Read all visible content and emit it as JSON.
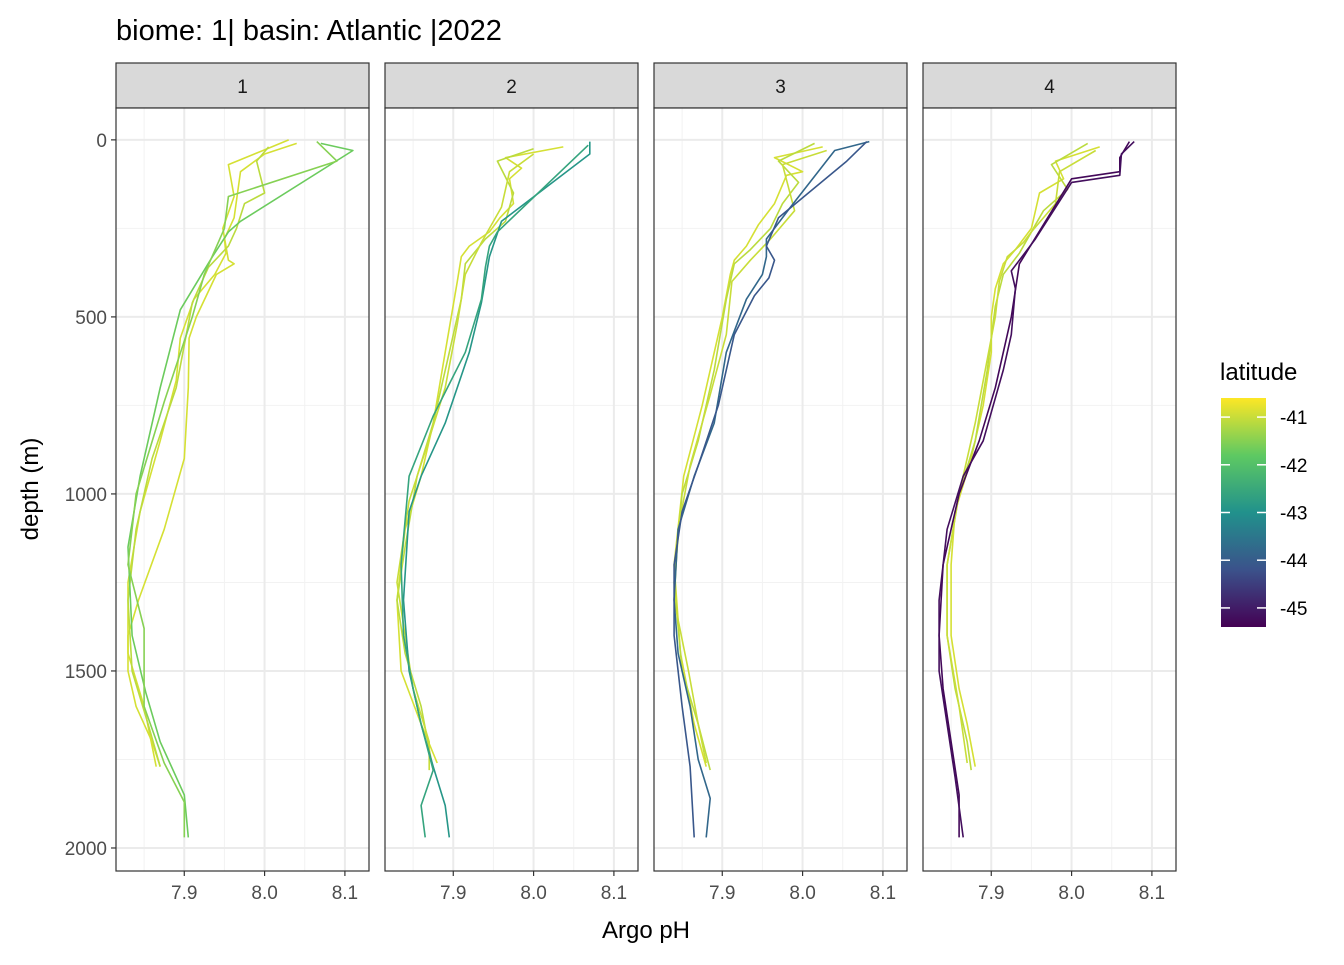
{
  "chart_data": {
    "type": "line",
    "title": "biome: 1| basin: Atlantic |2022",
    "xlabel": "Argo pH",
    "ylabel": "depth (m)",
    "xlim": [
      7.815,
      8.13
    ],
    "ylim": [
      2065,
      -90
    ],
    "x_ticks": [
      7.9,
      8.0,
      8.1
    ],
    "y_ticks": [
      0,
      500,
      1000,
      1500,
      2000
    ],
    "x_tick_labels": [
      "7.9",
      "8.0",
      "8.1"
    ],
    "y_tick_labels": [
      "0",
      "500",
      "1000",
      "1500",
      "2000"
    ],
    "grid": true,
    "legend": {
      "title": "latitude",
      "position": "right",
      "type": "colorbar",
      "range": [
        -45.4,
        -40.6
      ],
      "breaks": [
        -41,
        -42,
        -43,
        -44,
        -45
      ],
      "break_labels": [
        "-41",
        "-42",
        "-43",
        "-44",
        "-45"
      ],
      "palette": [
        "#440154",
        "#3b528b",
        "#21918c",
        "#5ec962",
        "#fde725"
      ]
    },
    "panels": [
      {
        "label": "1",
        "series": [
          {
            "latitude": -40.9,
            "x": [
              8.03,
              7.998,
              7.955,
              7.962,
              7.948,
              7.955,
              7.962,
              7.94,
              7.915,
              7.906,
              7.905,
              7.9,
              7.875,
              7.843,
              7.83,
              7.83,
              7.84,
              7.86,
              7.87
            ],
            "y": [
              0,
              30,
              70,
              160,
              250,
              340,
              350,
              380,
              500,
              560,
              700,
              900,
              1100,
              1300,
              1400,
              1500,
              1600,
              1700,
              1770
            ]
          },
          {
            "latitude": -40.9,
            "x": [
              8.04,
              8.0,
              7.97,
              7.962,
              7.95,
              7.952,
              7.938,
              7.912,
              7.895,
              7.89,
              7.87,
              7.845,
              7.83,
              7.83,
              7.85,
              7.865
            ],
            "y": [
              10,
              40,
              90,
              220,
              280,
              320,
              380,
              450,
              560,
              680,
              850,
              1050,
              1250,
              1450,
              1600,
              1770
            ]
          },
          {
            "latitude": -41.1,
            "x": [
              8.005,
              7.99,
              8.0,
              7.975,
              7.965,
              7.955,
              7.93,
              7.91,
              7.905,
              7.89,
              7.86,
              7.84,
              7.83,
              7.835,
              7.855,
              7.87
            ],
            "y": [
              20,
              60,
              150,
              180,
              250,
              300,
              360,
              460,
              520,
              700,
              900,
              1100,
              1300,
              1500,
              1650,
              1770
            ]
          },
          {
            "latitude": -41.7,
            "x": [
              8.07,
              8.11,
              7.97,
              7.955,
              7.935,
              7.895,
              7.87,
              7.845,
              7.83,
              7.835,
              7.852,
              7.87,
              7.9,
              7.905
            ],
            "y": [
              10,
              30,
              230,
              260,
              330,
              480,
              700,
              950,
              1150,
              1400,
              1560,
              1700,
              1850,
              1970
            ]
          },
          {
            "latitude": -41.5,
            "x": [
              8.065,
              8.09,
              7.955,
              7.95,
              7.925,
              7.91,
              7.875,
              7.84,
              7.83,
              7.85,
              7.85,
              7.875,
              7.9,
              7.9
            ],
            "y": [
              5,
              60,
              160,
              250,
              380,
              500,
              740,
              1000,
              1200,
              1380,
              1600,
              1760,
              1870,
              1970
            ]
          }
        ]
      },
      {
        "label": "2",
        "series": [
          {
            "latitude": -40.9,
            "x": [
              8.037,
              7.965,
              7.985,
              7.97,
              7.975,
              7.958,
              7.945,
              7.92,
              7.91,
              7.905,
              7.89,
              7.875,
              7.86,
              7.84,
              7.83,
              7.835,
              7.86,
              7.88
            ],
            "y": [
              20,
              50,
              80,
              110,
              180,
              220,
              260,
              300,
              330,
              400,
              600,
              800,
              950,
              1100,
              1300,
              1500,
              1650,
              1760
            ]
          },
          {
            "latitude": -41.1,
            "x": [
              8.0,
              7.955,
              7.975,
              7.965,
              7.94,
              7.915,
              7.91,
              7.895,
              7.875,
              7.855,
              7.84,
              7.83,
              7.84,
              7.86,
              7.875
            ],
            "y": [
              25,
              60,
              150,
              230,
              280,
              350,
              450,
              600,
              800,
              950,
              1150,
              1300,
              1450,
              1600,
              1780
            ]
          },
          {
            "latitude": -41.0,
            "x": [
              8.0,
              7.97,
              7.96,
              7.935,
              7.915,
              7.905,
              7.89,
              7.865,
              7.845,
              7.83,
              7.84,
              7.85,
              7.87,
              7.87
            ],
            "y": [
              40,
              90,
              190,
              290,
              380,
              520,
              700,
              880,
              1020,
              1250,
              1400,
              1550,
              1700,
              1780
            ]
          },
          {
            "latitude": -42.9,
            "x": [
              8.07,
              8.07,
              7.96,
              7.945,
              7.935,
              7.92,
              7.89,
              7.86,
              7.845,
              7.838,
              7.845,
              7.86,
              7.875,
              7.89,
              7.895
            ],
            "y": [
              5,
              40,
              230,
              330,
              460,
              600,
              800,
              950,
              1050,
              1300,
              1500,
              1650,
              1770,
              1880,
              1970
            ]
          },
          {
            "latitude": -42.6,
            "x": [
              8.068,
              7.955,
              7.945,
              7.94,
              7.935,
              7.915,
              7.875,
              7.845,
              7.835,
              7.838,
              7.85,
              7.86,
              7.875,
              7.86,
              7.865
            ],
            "y": [
              15,
              260,
              300,
              360,
              450,
              600,
              780,
              950,
              1200,
              1400,
              1550,
              1650,
              1780,
              1880,
              1970
            ]
          }
        ]
      },
      {
        "label": "3",
        "series": [
          {
            "latitude": -40.9,
            "x": [
              8.025,
              7.965,
              8.0,
              7.98,
              7.965,
              7.945,
              7.93,
              7.915,
              7.91,
              7.9,
              7.875,
              7.852,
              7.84,
              7.848,
              7.865,
              7.88
            ],
            "y": [
              20,
              50,
              90,
              100,
              180,
              240,
              300,
              340,
              380,
              500,
              750,
              950,
              1200,
              1450,
              1650,
              1770
            ]
          },
          {
            "latitude": -41.1,
            "x": [
              8.015,
              7.97,
              7.995,
              7.975,
              7.96,
              7.935,
              7.915,
              7.905,
              7.89,
              7.87,
              7.85,
              7.84,
              7.85,
              7.87,
              7.885
            ],
            "y": [
              10,
              60,
              120,
              180,
              250,
              310,
              350,
              450,
              650,
              850,
              1000,
              1250,
              1500,
              1650,
              1780
            ]
          },
          {
            "latitude": -41.0,
            "x": [
              8.03,
              7.975,
              7.99,
              7.96,
              7.935,
              7.912,
              7.905,
              7.885,
              7.86,
              7.845,
              7.84,
              7.858,
              7.87,
              7.88
            ],
            "y": [
              30,
              70,
              200,
              280,
              340,
              400,
              550,
              720,
              920,
              1100,
              1300,
              1500,
              1650,
              1760
            ]
          },
          {
            "latitude": -43.8,
            "x": [
              8.083,
              8.04,
              7.985,
              7.955,
              7.955,
              7.95,
              7.93,
              7.905,
              7.89,
              7.865,
              7.845,
              7.84,
              7.845,
              7.86,
              7.87,
              7.885,
              7.88
            ],
            "y": [
              5,
              30,
              190,
              280,
              330,
              380,
              450,
              600,
              800,
              950,
              1100,
              1300,
              1450,
              1600,
              1750,
              1860,
              1970
            ]
          },
          {
            "latitude": -44.1,
            "x": [
              8.08,
              8.055,
              7.97,
              7.955,
              7.965,
              7.958,
              7.94,
              7.915,
              7.895,
              7.87,
              7.85,
              7.84,
              7.84,
              7.85,
              7.86,
              7.865
            ],
            "y": [
              5,
              60,
              220,
              300,
              340,
              390,
              440,
              550,
              750,
              920,
              1050,
              1200,
              1400,
              1600,
              1770,
              1970
            ]
          }
        ]
      },
      {
        "label": "4",
        "series": [
          {
            "latitude": -40.9,
            "x": [
              8.035,
              7.98,
              7.99,
              7.96,
              7.95,
              7.93,
              7.915,
              7.905,
              7.9,
              7.9,
              7.89,
              7.875,
              7.855,
              7.85,
              7.85,
              7.86,
              7.87,
              7.88
            ],
            "y": [
              20,
              60,
              110,
              150,
              250,
              310,
              350,
              420,
              500,
              600,
              750,
              900,
              1050,
              1200,
              1400,
              1550,
              1650,
              1770
            ]
          },
          {
            "latitude": -41.1,
            "x": [
              8.02,
              7.975,
              7.995,
              7.965,
              7.955,
              7.935,
              7.915,
              7.905,
              7.895,
              7.88,
              7.86,
              7.845,
              7.845,
              7.855,
              7.87,
              7.875
            ],
            "y": [
              10,
              70,
              140,
              200,
              240,
              320,
              380,
              470,
              650,
              850,
              1000,
              1200,
              1400,
              1550,
              1700,
              1780
            ]
          },
          {
            "latitude": -41.0,
            "x": [
              8.03,
              7.985,
              7.98,
              7.95,
              7.94,
              7.92,
              7.91,
              7.905,
              7.88,
              7.86,
              7.845,
              7.845,
              7.86,
              7.87
            ],
            "y": [
              30,
              90,
              180,
              260,
              290,
              330,
              400,
              500,
              800,
              1000,
              1200,
              1400,
              1600,
              1760
            ]
          },
          {
            "latitude": -45.3,
            "x": [
              8.072,
              8.06,
              8.06,
              8.0,
              7.935,
              7.925,
              7.905,
              7.885,
              7.86,
              7.84,
              7.835,
              7.84,
              7.85,
              7.86,
              7.86
            ],
            "y": [
              5,
              50,
              90,
              110,
              350,
              500,
              700,
              850,
              1000,
              1200,
              1400,
              1550,
              1700,
              1850,
              1970
            ]
          },
          {
            "latitude": -45.2,
            "x": [
              8.078,
              8.062,
              8.06,
              8.0,
              7.955,
              7.925,
              7.93,
              7.925,
              7.915,
              7.89,
              7.865,
              7.845,
              7.835,
              7.835,
              7.845,
              7.855,
              7.865
            ],
            "y": [
              5,
              40,
              100,
              120,
              280,
              370,
              420,
              550,
              650,
              850,
              950,
              1100,
              1300,
              1500,
              1650,
              1800,
              1970
            ]
          }
        ]
      }
    ]
  }
}
